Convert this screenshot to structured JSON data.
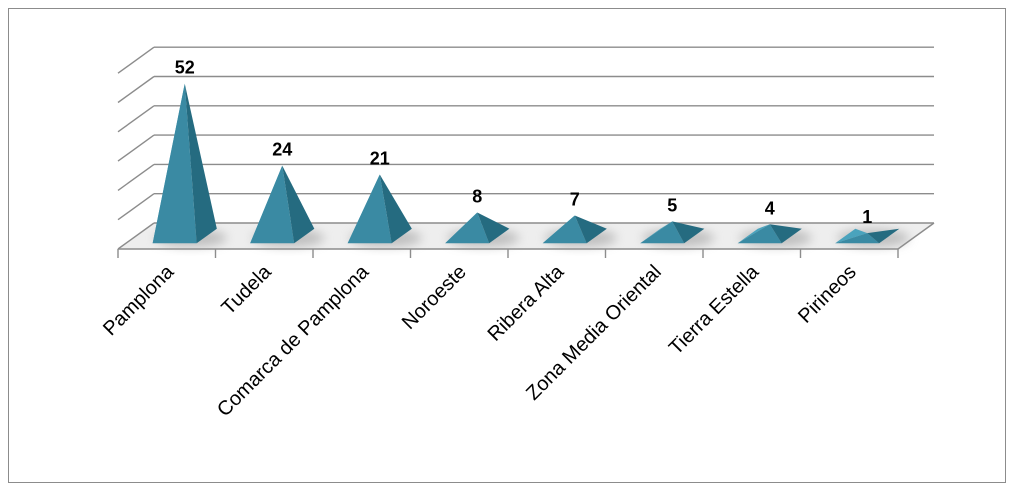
{
  "chart_data": {
    "type": "bar",
    "shape": "pyramid-3d",
    "categories": [
      "Pamplona",
      "Tudela",
      "Comarca de Pamplona",
      "Noroeste",
      "Ribera Alta",
      "Zona Media Oriental",
      "Tierra Estella",
      "Pirineos"
    ],
    "values": [
      52,
      24,
      21,
      8,
      7,
      5,
      4,
      1
    ],
    "data_labels": [
      "52",
      "24",
      "21",
      "8",
      "7",
      "5",
      "4",
      "1"
    ],
    "title": "",
    "xlabel": "",
    "ylabel": "",
    "ylim": [
      0,
      60
    ],
    "grid": true,
    "legend": "none",
    "colors": {
      "pyramid_light": "#4aa3bd",
      "pyramid_mid": "#3a8aa3",
      "pyramid_dark": "#256b80",
      "floor": "#d9d9d9",
      "gridline": "#8c8c8c",
      "frame": "#8c8c8c"
    }
  }
}
